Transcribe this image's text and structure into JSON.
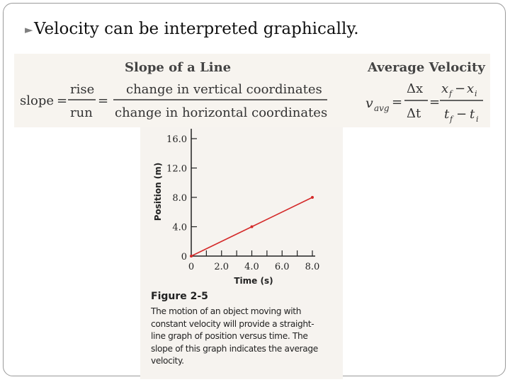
{
  "slide": {
    "bullet_text": "Velocity can be interpreted graphically.",
    "bullet_icon": "bullet-glyph"
  },
  "slope_box": {
    "title": "Slope of a Line",
    "slope_label": "slope",
    "rise": "rise",
    "run": "run",
    "numerator_text": "change in vertical coordinates",
    "denominator_text": "change in horizontal coordinates"
  },
  "avg_box": {
    "title": "Average Velocity",
    "lhs": "v",
    "lhs_sub": "avg",
    "num1": "Δx",
    "den1": "Δt",
    "num2_a": "x",
    "num2_a_sub": "f",
    "num2_b": "x",
    "num2_b_sub": "i",
    "den2_a": "t",
    "den2_a_sub": "f",
    "den2_b": "t",
    "den2_b_sub": "i"
  },
  "figure": {
    "label": "Figure 2-5",
    "caption": "The motion of an object moving with constant velocity will provide a straight-line graph of position versus time. The slope of this graph indicates the average velocity."
  },
  "colors": {
    "line": "#d42a2a",
    "axis": "#222222",
    "panel": "#f6f3ef"
  },
  "chart_data": {
    "type": "line",
    "xlabel": "Time (s)",
    "ylabel": "Position (m)",
    "x_ticks": [
      "0",
      "2.0",
      "4.0",
      "6.0",
      "8.0"
    ],
    "y_ticks": [
      "0",
      "4.0",
      "8.0",
      "12.0",
      "16.0"
    ],
    "xlim": [
      0,
      8
    ],
    "ylim": [
      0,
      16
    ],
    "series": [
      {
        "x": [
          0,
          4,
          8
        ],
        "y": [
          0,
          4,
          8
        ]
      }
    ]
  }
}
